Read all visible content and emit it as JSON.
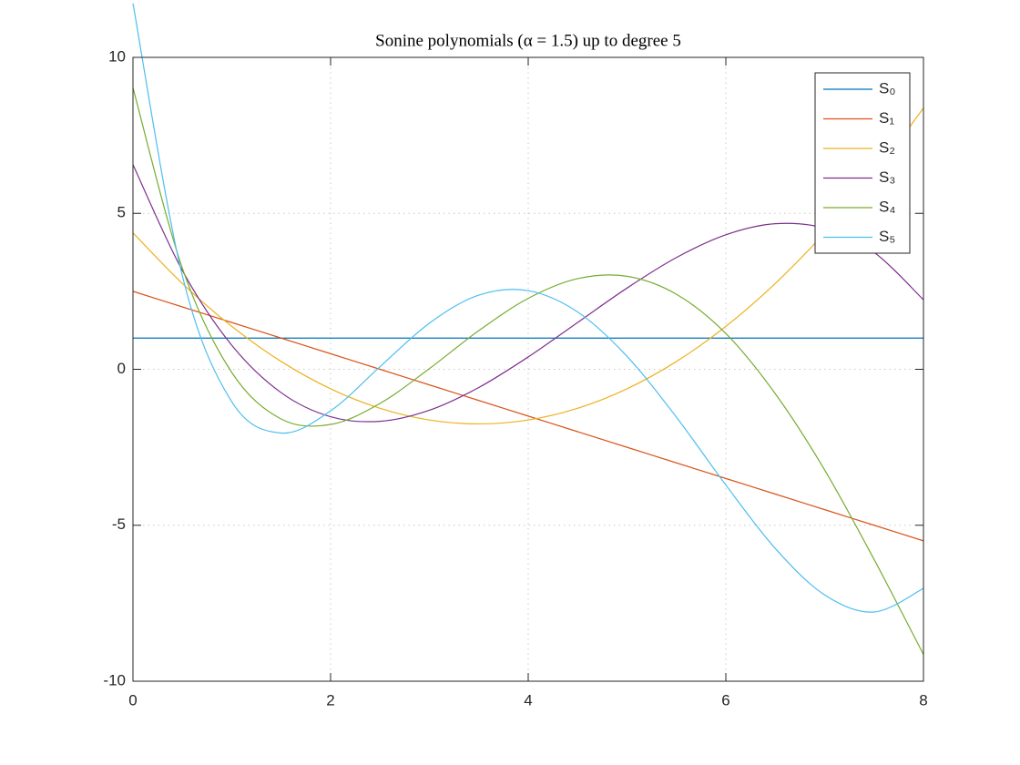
{
  "chart_data": {
    "type": "line",
    "title": "Sonine polynomials (α = 1.5) up to degree 5",
    "x": [
      0,
      0.5,
      1,
      1.5,
      2,
      2.5,
      3,
      3.5,
      4,
      4.5,
      5,
      5.5,
      6,
      6.5,
      7,
      7.5,
      8
    ],
    "series": [
      {
        "name": "S₀",
        "color": "#0072BD",
        "values": [
          1,
          1,
          1,
          1,
          1,
          1,
          1,
          1,
          1,
          1,
          1,
          1,
          1,
          1,
          1,
          1,
          1
        ]
      },
      {
        "name": "S₁",
        "color": "#D95319",
        "values": [
          2.5,
          2,
          1.5,
          1,
          0.5,
          0,
          -0.5,
          -1,
          -1.5,
          -2,
          -2.5,
          -3,
          -3.5,
          -4,
          -4.5,
          -5,
          -5.5
        ]
      },
      {
        "name": "S₂",
        "color": "#EDB120",
        "values": [
          4.375,
          2.75,
          1.375,
          0.25,
          -0.625,
          -1.25,
          -1.625,
          -1.75,
          -1.625,
          -1.25,
          -0.625,
          0.25,
          1.375,
          2.75,
          4.375,
          6.25,
          8.375
        ]
      },
      {
        "name": "S₃",
        "color": "#7E2F8E",
        "values": [
          6.5625,
          3.167,
          0.771,
          -0.75,
          -1.521,
          -1.667,
          -1.3125,
          -0.583,
          0.396,
          1.5,
          2.604,
          3.583,
          4.3125,
          4.667,
          4.521,
          3.75,
          2.229
        ]
      },
      {
        "name": "S₄",
        "color": "#77AC30",
        "values": [
          9.023,
          3.24,
          -0.102,
          -1.594,
          -1.768,
          -1.094,
          0.023,
          1.24,
          2.273,
          2.906,
          2.982,
          2.406,
          1.148,
          -0.781,
          -3.227,
          -6.094,
          -9.143
        ]
      },
      {
        "name": "S₅",
        "color": "#4DBEEE",
        "values": [
          11.73,
          2.996,
          -1.041,
          -2.044,
          -1.333,
          0.083,
          1.479,
          2.377,
          2.52,
          1.838,
          0.415,
          -1.535,
          -3.71,
          -5.742,
          -7.232,
          -7.781,
          -7.024
        ]
      }
    ],
    "xlim": [
      0,
      8
    ],
    "xticks": [
      0,
      2,
      4,
      6,
      8
    ],
    "ylim": [
      -10,
      10
    ],
    "yticks": [
      -10,
      -5,
      0,
      5,
      10
    ],
    "grid": true,
    "legend_position": "northeast"
  }
}
